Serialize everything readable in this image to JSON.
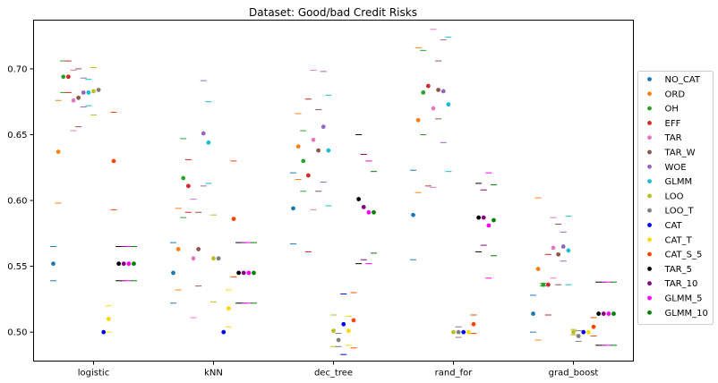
{
  "chart_data": {
    "type": "scatter",
    "title": "Dataset: Good/bad Credit Risks",
    "xlabel": "",
    "ylabel": "",
    "categories": [
      "logistic",
      "kNN",
      "dec_tree",
      "rand_for",
      "grad_boost"
    ],
    "yticks": [
      0.5,
      0.55,
      0.6,
      0.65,
      0.7
    ],
    "ytick_labels": [
      "0.50",
      "0.55",
      "0.60",
      "0.65",
      "0.70"
    ],
    "ylim": [
      0.478,
      0.737
    ],
    "grid": false,
    "legend_position": "right",
    "colors": {
      "NO_CAT": "#1f77b4",
      "ORD": "#ff7f0e",
      "OH": "#2ca02c",
      "EFF": "#d62728",
      "TAR": "#e377c2",
      "TAR_W": "#8c564b",
      "WOE": "#9467bd",
      "GLMM": "#17becf",
      "LOO": "#bcbd22",
      "LOO_T": "#7f7f7f",
      "CAT": "#0000ff",
      "CAT_T": "#ffd700",
      "CAT_S_5": "#ff4500",
      "TAR_5": "#000000",
      "TAR_10": "#800080",
      "GLMM_5": "#ff00ff",
      "GLMM_10": "#008000"
    },
    "series": [
      {
        "name": "NO_CAT",
        "values": [
          0.552,
          0.545,
          0.594,
          0.589,
          0.514
        ],
        "err": [
          0.013,
          0.023,
          0.027,
          0.034,
          0.014
        ]
      },
      {
        "name": "ORD",
        "values": [
          0.637,
          0.563,
          0.641,
          0.661,
          0.548
        ],
        "err": [
          0.039,
          0.031,
          0.025,
          0.055,
          0.054
        ]
      },
      {
        "name": "OH",
        "values": [
          0.694,
          0.617,
          0.63,
          0.682,
          0.536
        ],
        "err": [
          0.012,
          0.03,
          0.023,
          0.032,
          0.001
        ]
      },
      {
        "name": "EFF",
        "values": [
          0.694,
          0.611,
          0.619,
          0.687,
          0.536
        ],
        "err": [
          0.012,
          0.02,
          0.058,
          0.076,
          0.023
        ]
      },
      {
        "name": "TAR",
        "values": [
          0.676,
          0.556,
          0.646,
          0.67,
          0.564
        ],
        "err": [
          0.023,
          0.045,
          0.053,
          0.06,
          0.023
        ]
      },
      {
        "name": "TAR_W",
        "values": [
          0.678,
          0.563,
          0.638,
          0.684,
          0.559
        ],
        "err": [
          0.022,
          0.028,
          0.031,
          0.022,
          0.023
        ]
      },
      {
        "name": "WOE",
        "values": [
          0.682,
          0.651,
          0.656,
          0.683,
          0.565
        ],
        "err": [
          0.011,
          0.04,
          0.042,
          0.039,
          0.011
        ]
      },
      {
        "name": "GLMM",
        "values": [
          0.682,
          0.644,
          0.638,
          0.673,
          0.562
        ],
        "err": [
          0.01,
          0.031,
          0.042,
          0.051,
          0.026
        ]
      },
      {
        "name": "LOO",
        "values": [
          0.683,
          0.556,
          0.501,
          0.5,
          0.5
        ],
        "err": [
          0.018,
          0.033,
          0.012,
          0.0,
          0.002
        ]
      },
      {
        "name": "LOO_T",
        "values": [
          0.684,
          0.556,
          0.494,
          0.5,
          0.497
        ],
        "err": [
          0.0,
          0.0,
          0.005,
          0.004,
          0.004
        ]
      },
      {
        "name": "CAT",
        "values": [
          0.5,
          0.5,
          0.506,
          0.5,
          0.5
        ],
        "err": [
          0.0,
          0.0,
          0.023,
          0.0,
          0.0
        ]
      },
      {
        "name": "CAT_T",
        "values": [
          0.51,
          0.518,
          0.501,
          0.5,
          0.5
        ],
        "err": [
          0.01,
          0.014,
          0.011,
          0.0,
          0.0
        ]
      },
      {
        "name": "CAT_S_5",
        "values": [
          0.63,
          0.586,
          0.509,
          0.506,
          0.504
        ],
        "err": [
          0.037,
          0.044,
          0.021,
          0.007,
          0.007
        ]
      },
      {
        "name": "TAR_5",
        "values": [
          0.552,
          0.545,
          0.601,
          0.587,
          0.514
        ],
        "err": [
          0.013,
          0.023,
          0.049,
          0.026,
          0.024
        ]
      },
      {
        "name": "TAR_10",
        "values": [
          0.552,
          0.545,
          0.595,
          0.587,
          0.514
        ],
        "err": [
          0.013,
          0.023,
          0.04,
          0.021,
          0.024
        ]
      },
      {
        "name": "GLMM_5",
        "values": [
          0.552,
          0.545,
          0.591,
          0.581,
          0.514
        ],
        "err": [
          0.013,
          0.023,
          0.039,
          0.04,
          0.024
        ]
      },
      {
        "name": "GLMM_10",
        "values": [
          0.552,
          0.545,
          0.591,
          0.585,
          0.514
        ],
        "err": [
          0.013,
          0.023,
          0.031,
          0.027,
          0.024
        ]
      }
    ]
  }
}
